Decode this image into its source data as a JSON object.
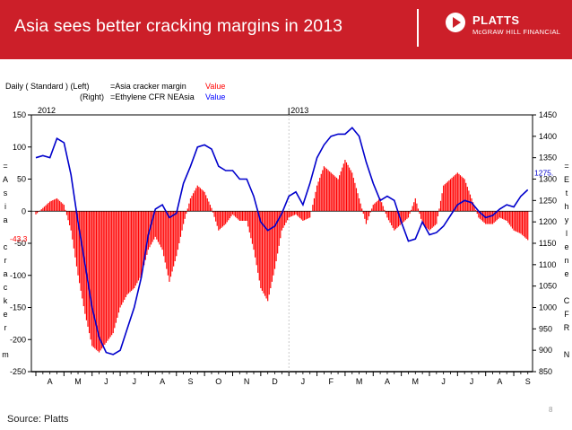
{
  "slide": {
    "title": "Asia sees better cracking margins in 2013",
    "logo_word": "PLATTS",
    "logo_sub": "McGRAW HILL FINANCIAL",
    "source": "Source: Platts",
    "page_number": "8",
    "header_color": "#cc1f29"
  },
  "chart_data": {
    "type": "bar+line",
    "legend": {
      "line1": {
        "prefix": "Daily ( Standard )  (Left)",
        "name": "=Asia cracker margin",
        "value": "Value",
        "color": "#ff0000"
      },
      "line2": {
        "prefix": "(Right)",
        "name": "=Ethylene CFR NEAsia",
        "value": "Value",
        "color": "#0000ff"
      }
    },
    "year_labels": [
      {
        "label": "2012",
        "x": 0
      },
      {
        "label": "2013",
        "x": 9
      }
    ],
    "x_months": [
      "A",
      "M",
      "J",
      "J",
      "A",
      "S",
      "O",
      "N",
      "D",
      "J",
      "F",
      "M",
      "A",
      "M",
      "J",
      "J",
      "A",
      "S"
    ],
    "xlim": [
      0,
      17.7
    ],
    "left_axis": {
      "label_chars": [
        "=",
        "A",
        "s",
        "i",
        "a",
        "",
        "c",
        "r",
        "a",
        "c",
        "k",
        "e",
        "r",
        "",
        "m"
      ],
      "ticks": [
        "150",
        "100",
        "50",
        "0",
        "-50",
        "-100",
        "-150",
        "-200",
        "-250"
      ],
      "ylim": [
        -250,
        150
      ],
      "last_value": "-43.3"
    },
    "right_axis": {
      "label_chars": [
        "=",
        "E",
        "t",
        "h",
        "y",
        "l",
        "e",
        "n",
        "e",
        "",
        "C",
        "F",
        "R",
        "",
        "N"
      ],
      "ticks": [
        "1450",
        "1400",
        "1350",
        "1300",
        "1250",
        "1200",
        "1150",
        "1100",
        "1050",
        "1000",
        "950",
        "900",
        "850"
      ],
      "ylim": [
        850,
        1450
      ],
      "last_value": "1275."
    },
    "series": [
      {
        "name": "Asia cracker margin",
        "axis": "left",
        "color": "#ff0000",
        "x": [
          0,
          0.25,
          0.5,
          0.75,
          1,
          1.25,
          1.5,
          1.75,
          2,
          2.25,
          2.5,
          2.75,
          3,
          3.25,
          3.5,
          3.75,
          4,
          4.25,
          4.5,
          4.75,
          5,
          5.25,
          5.5,
          5.75,
          6,
          6.25,
          6.5,
          6.75,
          7,
          7.25,
          7.5,
          7.75,
          8,
          8.25,
          8.5,
          8.75,
          9,
          9.25,
          9.5,
          9.75,
          10,
          10.25,
          10.5,
          10.75,
          11,
          11.25,
          11.5,
          11.75,
          12,
          12.25,
          12.5,
          12.75,
          13,
          13.25,
          13.5,
          13.75,
          14,
          14.25,
          14.5,
          14.75,
          15,
          15.25,
          15.5,
          15.75,
          16,
          16.25,
          16.5,
          16.75,
          17,
          17.25,
          17.5
        ],
        "values": [
          -5,
          5,
          15,
          20,
          10,
          -30,
          -100,
          -160,
          -210,
          -220,
          -205,
          -190,
          -150,
          -130,
          -120,
          -100,
          -60,
          -40,
          -60,
          -110,
          -70,
          -20,
          20,
          40,
          30,
          5,
          -30,
          -20,
          -5,
          -15,
          -15,
          -60,
          -120,
          -140,
          -90,
          -30,
          -10,
          -5,
          -15,
          -10,
          40,
          70,
          60,
          50,
          80,
          60,
          20,
          -20,
          10,
          20,
          -10,
          -30,
          -20,
          -10,
          20,
          -20,
          -30,
          -20,
          40,
          50,
          60,
          50,
          20,
          -10,
          -20,
          -20,
          -10,
          -15,
          -30,
          -35,
          -45
        ]
      },
      {
        "name": "Ethylene CFR NEAsia",
        "axis": "right",
        "color": "#0000cc",
        "x": [
          0,
          0.25,
          0.5,
          0.75,
          1,
          1.25,
          1.5,
          1.75,
          2,
          2.25,
          2.5,
          2.75,
          3,
          3.25,
          3.5,
          3.75,
          4,
          4.25,
          4.5,
          4.75,
          5,
          5.25,
          5.5,
          5.75,
          6,
          6.25,
          6.5,
          6.75,
          7,
          7.25,
          7.5,
          7.75,
          8,
          8.25,
          8.5,
          8.75,
          9,
          9.25,
          9.5,
          9.75,
          10,
          10.25,
          10.5,
          10.75,
          11,
          11.25,
          11.5,
          11.75,
          12,
          12.25,
          12.5,
          12.75,
          13,
          13.25,
          13.5,
          13.75,
          14,
          14.25,
          14.5,
          14.75,
          15,
          15.25,
          15.5,
          15.75,
          16,
          16.25,
          16.5,
          16.75,
          17,
          17.25,
          17.5
        ],
        "values": [
          1350,
          1355,
          1350,
          1395,
          1385,
          1310,
          1200,
          1100,
          1000,
          930,
          895,
          890,
          900,
          950,
          1000,
          1070,
          1170,
          1230,
          1240,
          1210,
          1220,
          1290,
          1330,
          1375,
          1380,
          1370,
          1330,
          1320,
          1320,
          1300,
          1300,
          1260,
          1200,
          1180,
          1190,
          1220,
          1260,
          1270,
          1240,
          1290,
          1350,
          1380,
          1400,
          1405,
          1405,
          1420,
          1400,
          1340,
          1290,
          1250,
          1260,
          1250,
          1200,
          1155,
          1160,
          1200,
          1170,
          1175,
          1190,
          1215,
          1240,
          1250,
          1245,
          1225,
          1210,
          1215,
          1230,
          1240,
          1235,
          1260,
          1275
        ]
      }
    ]
  }
}
